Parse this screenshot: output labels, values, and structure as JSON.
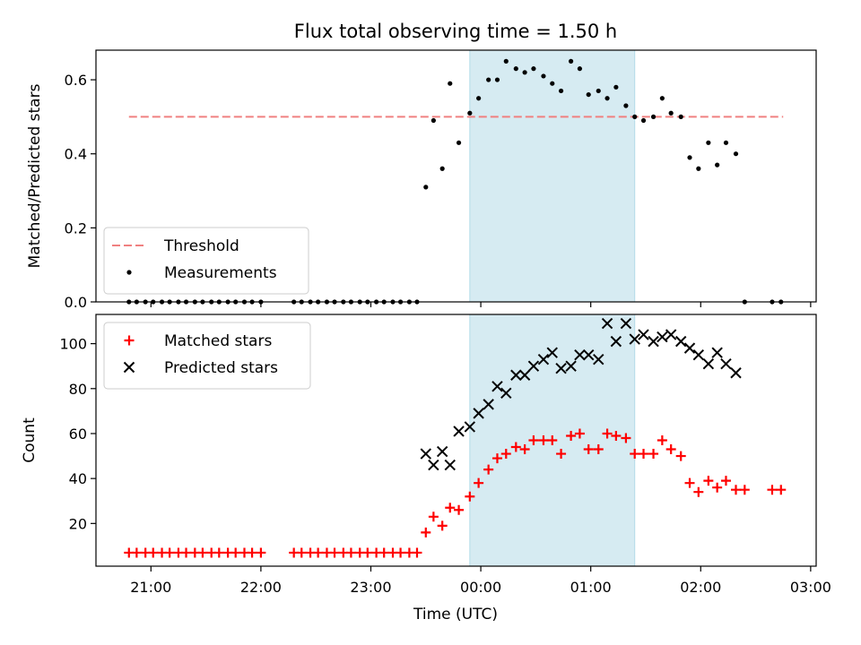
{
  "chart_data": [
    {
      "type": "scatter",
      "title": "Flux total observing time = 1.50 h",
      "xlabel": "",
      "ylabel": "Matched/Predicted stars",
      "xlim": [
        -3.5,
        3.05
      ],
      "ylim": [
        0,
        0.68
      ],
      "yticks": [
        0.0,
        0.2,
        0.4,
        0.6
      ],
      "ytick_labels": [
        "0.0",
        "0.2",
        "0.4",
        "0.6"
      ],
      "shaded_region": {
        "x0": -0.1,
        "x1": 1.4,
        "color": "#add8e6"
      },
      "legend": {
        "placement": "lower-left"
      },
      "series": [
        {
          "name": "Threshold",
          "kind": "dashed-line",
          "color": "#f08080",
          "x": [
            -3.2,
            2.75
          ],
          "y": [
            0.5,
            0.5
          ]
        },
        {
          "name": "Measurements",
          "kind": "points",
          "color": "#000000",
          "points": [
            [
              -3.2,
              0
            ],
            [
              -3.13,
              0
            ],
            [
              -3.05,
              0
            ],
            [
              -2.98,
              0
            ],
            [
              -2.9,
              0
            ],
            [
              -2.83,
              0
            ],
            [
              -2.75,
              0
            ],
            [
              -2.68,
              0
            ],
            [
              -2.6,
              0
            ],
            [
              -2.53,
              0
            ],
            [
              -2.45,
              0
            ],
            [
              -2.38,
              0
            ],
            [
              -2.3,
              0
            ],
            [
              -2.23,
              0
            ],
            [
              -2.15,
              0
            ],
            [
              -2.08,
              0
            ],
            [
              -2.0,
              0
            ],
            [
              -1.7,
              0
            ],
            [
              -1.63,
              0
            ],
            [
              -1.55,
              0
            ],
            [
              -1.48,
              0
            ],
            [
              -1.4,
              0
            ],
            [
              -1.33,
              0
            ],
            [
              -1.25,
              0
            ],
            [
              -1.18,
              0
            ],
            [
              -1.1,
              0
            ],
            [
              -1.03,
              0
            ],
            [
              -0.95,
              0
            ],
            [
              -0.88,
              0
            ],
            [
              -0.8,
              0
            ],
            [
              -0.73,
              0
            ],
            [
              -0.65,
              0
            ],
            [
              -0.58,
              0
            ],
            [
              -0.5,
              0.31
            ],
            [
              -0.43,
              0.49
            ],
            [
              -0.35,
              0.36
            ],
            [
              -0.28,
              0.59
            ],
            [
              -0.2,
              0.43
            ],
            [
              -0.1,
              0.51
            ],
            [
              -0.02,
              0.55
            ],
            [
              0.07,
              0.6
            ],
            [
              0.15,
              0.6
            ],
            [
              0.23,
              0.65
            ],
            [
              0.32,
              0.63
            ],
            [
              0.4,
              0.62
            ],
            [
              0.48,
              0.63
            ],
            [
              0.57,
              0.61
            ],
            [
              0.65,
              0.59
            ],
            [
              0.73,
              0.57
            ],
            [
              0.82,
              0.65
            ],
            [
              0.9,
              0.63
            ],
            [
              0.98,
              0.56
            ],
            [
              1.07,
              0.57
            ],
            [
              1.15,
              0.55
            ],
            [
              1.23,
              0.58
            ],
            [
              1.32,
              0.53
            ],
            [
              1.4,
              0.5
            ],
            [
              1.48,
              0.49
            ],
            [
              1.57,
              0.5
            ],
            [
              1.65,
              0.55
            ],
            [
              1.73,
              0.51
            ],
            [
              1.82,
              0.5
            ],
            [
              1.9,
              0.39
            ],
            [
              1.98,
              0.36
            ],
            [
              2.07,
              0.43
            ],
            [
              2.15,
              0.37
            ],
            [
              2.23,
              0.43
            ],
            [
              2.32,
              0.4
            ],
            [
              2.4,
              0
            ],
            [
              2.65,
              0
            ],
            [
              2.73,
              0
            ]
          ]
        }
      ]
    },
    {
      "type": "scatter",
      "title": "",
      "xlabel": "Time (UTC)",
      "ylabel": "Count",
      "xlim": [
        -3.5,
        3.05
      ],
      "ylim": [
        1,
        113
      ],
      "yticks": [
        20,
        40,
        60,
        80,
        100
      ],
      "ytick_labels": [
        "20",
        "40",
        "60",
        "80",
        "100"
      ],
      "xticks": [
        -3,
        -2,
        -1,
        0,
        1,
        2,
        3
      ],
      "xtick_labels": [
        "21:00",
        "22:00",
        "23:00",
        "00:00",
        "01:00",
        "02:00",
        "03:00"
      ],
      "shaded_region": {
        "x0": -0.1,
        "x1": 1.4,
        "color": "#add8e6"
      },
      "legend": {
        "placement": "upper-left"
      },
      "series": [
        {
          "name": "Matched stars",
          "kind": "plus",
          "color": "#ff0000",
          "points": [
            [
              -3.2,
              7
            ],
            [
              -3.13,
              7
            ],
            [
              -3.05,
              7
            ],
            [
              -2.98,
              7
            ],
            [
              -2.9,
              7
            ],
            [
              -2.83,
              7
            ],
            [
              -2.75,
              7
            ],
            [
              -2.68,
              7
            ],
            [
              -2.6,
              7
            ],
            [
              -2.53,
              7
            ],
            [
              -2.45,
              7
            ],
            [
              -2.38,
              7
            ],
            [
              -2.3,
              7
            ],
            [
              -2.23,
              7
            ],
            [
              -2.15,
              7
            ],
            [
              -2.08,
              7
            ],
            [
              -2.0,
              7
            ],
            [
              -1.7,
              7
            ],
            [
              -1.63,
              7
            ],
            [
              -1.55,
              7
            ],
            [
              -1.48,
              7
            ],
            [
              -1.4,
              7
            ],
            [
              -1.33,
              7
            ],
            [
              -1.25,
              7
            ],
            [
              -1.18,
              7
            ],
            [
              -1.1,
              7
            ],
            [
              -1.03,
              7
            ],
            [
              -0.95,
              7
            ],
            [
              -0.88,
              7
            ],
            [
              -0.8,
              7
            ],
            [
              -0.73,
              7
            ],
            [
              -0.65,
              7
            ],
            [
              -0.58,
              7
            ],
            [
              -0.5,
              16
            ],
            [
              -0.43,
              23
            ],
            [
              -0.35,
              19
            ],
            [
              -0.28,
              27
            ],
            [
              -0.2,
              26
            ],
            [
              -0.1,
              32
            ],
            [
              -0.02,
              38
            ],
            [
              0.07,
              44
            ],
            [
              0.15,
              49
            ],
            [
              0.23,
              51
            ],
            [
              0.32,
              54
            ],
            [
              0.4,
              53
            ],
            [
              0.48,
              57
            ],
            [
              0.57,
              57
            ],
            [
              0.65,
              57
            ],
            [
              0.73,
              51
            ],
            [
              0.82,
              59
            ],
            [
              0.9,
              60
            ],
            [
              0.98,
              53
            ],
            [
              1.07,
              53
            ],
            [
              1.15,
              60
            ],
            [
              1.23,
              59
            ],
            [
              1.32,
              58
            ],
            [
              1.4,
              51
            ],
            [
              1.48,
              51
            ],
            [
              1.57,
              51
            ],
            [
              1.65,
              57
            ],
            [
              1.73,
              53
            ],
            [
              1.82,
              50
            ],
            [
              1.9,
              38
            ],
            [
              1.98,
              34
            ],
            [
              2.07,
              39
            ],
            [
              2.15,
              36
            ],
            [
              2.23,
              39
            ],
            [
              2.32,
              35
            ],
            [
              2.4,
              35
            ],
            [
              2.65,
              35
            ],
            [
              2.73,
              35
            ]
          ]
        },
        {
          "name": "Predicted stars",
          "kind": "x",
          "color": "#000000",
          "points": [
            [
              -0.5,
              51
            ],
            [
              -0.43,
              46
            ],
            [
              -0.35,
              52
            ],
            [
              -0.28,
              46
            ],
            [
              -0.2,
              61
            ],
            [
              -0.1,
              63
            ],
            [
              -0.02,
              69
            ],
            [
              0.07,
              73
            ],
            [
              0.15,
              81
            ],
            [
              0.23,
              78
            ],
            [
              0.32,
              86
            ],
            [
              0.4,
              86
            ],
            [
              0.48,
              90
            ],
            [
              0.57,
              93
            ],
            [
              0.65,
              96
            ],
            [
              0.73,
              89
            ],
            [
              0.82,
              90
            ],
            [
              0.9,
              95
            ],
            [
              0.98,
              95
            ],
            [
              1.07,
              93
            ],
            [
              1.15,
              109
            ],
            [
              1.23,
              101
            ],
            [
              1.32,
              109
            ],
            [
              1.4,
              102
            ],
            [
              1.48,
              104
            ],
            [
              1.57,
              101
            ],
            [
              1.65,
              103
            ],
            [
              1.73,
              104
            ],
            [
              1.82,
              101
            ],
            [
              1.9,
              98
            ],
            [
              1.98,
              95
            ],
            [
              2.07,
              91
            ],
            [
              2.15,
              96
            ],
            [
              2.23,
              91
            ],
            [
              2.32,
              87
            ]
          ]
        }
      ]
    }
  ]
}
